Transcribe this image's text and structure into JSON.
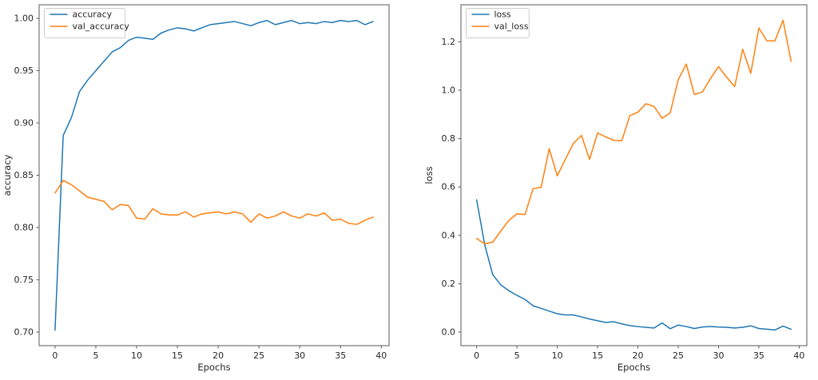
{
  "figure": {
    "background": "#ffffff",
    "description": "Two training-history line charts side by side"
  },
  "chart_data": [
    {
      "type": "line",
      "title": "",
      "xlabel": "Epochs",
      "ylabel": "accuracy",
      "grid": false,
      "legend_position": "upper-left",
      "legend_entries": [
        "accuracy",
        "val_accuracy"
      ],
      "xlim": [
        -1.95,
        40.95
      ],
      "ylim": [
        0.687,
        1.013
      ],
      "xtick_labels": [
        "0",
        "5",
        "10",
        "15",
        "20",
        "25",
        "30",
        "35",
        "40"
      ],
      "ytick_labels": [
        "0.70",
        "0.75",
        "0.80",
        "0.85",
        "0.90",
        "0.95",
        "1.00"
      ],
      "x": [
        0,
        1,
        2,
        3,
        4,
        5,
        6,
        7,
        8,
        9,
        10,
        11,
        12,
        13,
        14,
        15,
        16,
        17,
        18,
        19,
        20,
        21,
        22,
        23,
        24,
        25,
        26,
        27,
        28,
        29,
        30,
        31,
        32,
        33,
        34,
        35,
        36,
        37,
        38,
        39
      ],
      "series": [
        {
          "name": "accuracy",
          "color": "#1f77b4",
          "values": [
            0.702,
            0.888,
            0.905,
            0.93,
            0.941,
            0.95,
            0.959,
            0.968,
            0.972,
            0.979,
            0.982,
            0.981,
            0.98,
            0.986,
            0.989,
            0.991,
            0.99,
            0.988,
            0.991,
            0.994,
            0.995,
            0.996,
            0.997,
            0.995,
            0.993,
            0.996,
            0.998,
            0.994,
            0.996,
            0.998,
            0.995,
            0.996,
            0.995,
            0.997,
            0.996,
            0.998,
            0.997,
            0.998,
            0.994,
            0.997
          ]
        },
        {
          "name": "val_accuracy",
          "color": "#ff7f0e",
          "values": [
            0.833,
            0.845,
            0.841,
            0.835,
            0.829,
            0.827,
            0.825,
            0.817,
            0.822,
            0.821,
            0.809,
            0.808,
            0.818,
            0.813,
            0.812,
            0.812,
            0.815,
            0.81,
            0.813,
            0.814,
            0.815,
            0.813,
            0.815,
            0.813,
            0.805,
            0.813,
            0.809,
            0.811,
            0.815,
            0.811,
            0.809,
            0.813,
            0.811,
            0.814,
            0.807,
            0.808,
            0.804,
            0.803,
            0.807,
            0.81
          ]
        }
      ]
    },
    {
      "type": "line",
      "title": "",
      "xlabel": "Epochs",
      "ylabel": "loss",
      "grid": false,
      "legend_position": "upper-left",
      "legend_entries": [
        "loss",
        "val_loss"
      ],
      "xlim": [
        -1.95,
        40.95
      ],
      "ylim": [
        -0.056,
        1.353
      ],
      "xtick_labels": [
        "0",
        "5",
        "10",
        "15",
        "20",
        "25",
        "30",
        "35",
        "40"
      ],
      "ytick_labels": [
        "0.0",
        "0.2",
        "0.4",
        "0.6",
        "0.8",
        "1.0",
        "1.2"
      ],
      "x": [
        0,
        1,
        2,
        3,
        4,
        5,
        6,
        7,
        8,
        9,
        10,
        11,
        12,
        13,
        14,
        15,
        16,
        17,
        18,
        19,
        20,
        21,
        22,
        23,
        24,
        25,
        26,
        27,
        28,
        29,
        30,
        31,
        32,
        33,
        34,
        35,
        36,
        37,
        38,
        39
      ],
      "series": [
        {
          "name": "loss",
          "color": "#1f77b4",
          "values": [
            0.547,
            0.361,
            0.237,
            0.195,
            0.171,
            0.152,
            0.135,
            0.109,
            0.098,
            0.087,
            0.076,
            0.071,
            0.071,
            0.063,
            0.054,
            0.047,
            0.04,
            0.043,
            0.034,
            0.027,
            0.023,
            0.02,
            0.017,
            0.038,
            0.014,
            0.029,
            0.023,
            0.015,
            0.021,
            0.023,
            0.021,
            0.02,
            0.017,
            0.02,
            0.026,
            0.015,
            0.012,
            0.009,
            0.025,
            0.012
          ]
        },
        {
          "name": "val_loss",
          "color": "#ff7f0e",
          "values": [
            0.387,
            0.365,
            0.372,
            0.418,
            0.462,
            0.489,
            0.486,
            0.593,
            0.599,
            0.758,
            0.646,
            0.714,
            0.78,
            0.813,
            0.714,
            0.823,
            0.807,
            0.793,
            0.791,
            0.895,
            0.909,
            0.944,
            0.933,
            0.884,
            0.906,
            1.043,
            1.108,
            0.982,
            0.993,
            1.048,
            1.098,
            1.054,
            1.015,
            1.169,
            1.07,
            1.257,
            1.204,
            1.204,
            1.289,
            1.119
          ]
        }
      ]
    }
  ]
}
